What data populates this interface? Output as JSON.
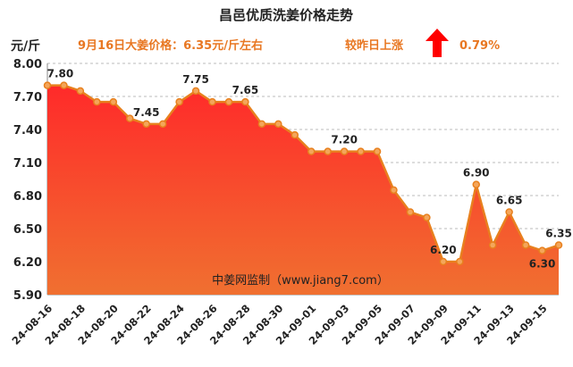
{
  "title": "昌邑优质洗姜价格走势",
  "unit_label": "元/斤",
  "info_price": "9月16日大姜价格：6.35元/斤左右",
  "info_change": "较昨日上涨",
  "info_change_value": "0.79%",
  "trend_icon": "arrow-up-icon",
  "watermark": "中姜网监制（www.jiang7.com）",
  "colors": {
    "title": "#222222",
    "accent_text": "#e87722",
    "arrow": "#ff0000",
    "line": "#e8801e",
    "marker_fill": "#f4a65a",
    "area_top": "#ff2a2a",
    "area_bottom": "#f07030",
    "grid": "#bbbbbb"
  },
  "chart_data": {
    "type": "area",
    "title": "昌邑优质洗姜价格走势",
    "ylabel": "元/斤",
    "xlabel": "",
    "ylim": [
      5.9,
      8.0
    ],
    "yticks": [
      "5.90",
      "6.20",
      "6.50",
      "6.80",
      "7.10",
      "7.40",
      "7.70",
      "8.00"
    ],
    "grid": true,
    "x": [
      "24-08-16",
      "24-08-17",
      "24-08-18",
      "24-08-19",
      "24-08-20",
      "24-08-21",
      "24-08-22",
      "24-08-23",
      "24-08-24",
      "24-08-25",
      "24-08-26",
      "24-08-27",
      "24-08-28",
      "24-08-29",
      "24-08-30",
      "24-08-31",
      "24-09-01",
      "24-09-02",
      "24-09-03",
      "24-09-04",
      "24-09-05",
      "24-09-06",
      "24-09-07",
      "24-09-08",
      "24-09-09",
      "24-09-10",
      "24-09-11",
      "24-09-12",
      "24-09-13",
      "24-09-14",
      "24-09-15",
      "24-09-16"
    ],
    "x_tick_labels": [
      "24-08-16",
      "24-08-18",
      "24-08-20",
      "24-08-22",
      "24-08-24",
      "24-08-26",
      "24-08-28",
      "24-08-30",
      "24-09-01",
      "24-09-03",
      "24-09-05",
      "24-09-07",
      "24-09-09",
      "24-09-11",
      "24-09-13",
      "24-09-15"
    ],
    "series": [
      {
        "values": [
          7.8,
          7.8,
          7.75,
          7.65,
          7.65,
          7.5,
          7.45,
          7.45,
          7.65,
          7.75,
          7.65,
          7.65,
          7.65,
          7.45,
          7.45,
          7.35,
          7.2,
          7.2,
          7.2,
          7.2,
          7.2,
          6.85,
          6.65,
          6.6,
          6.2,
          6.2,
          6.9,
          6.35,
          6.65,
          6.35,
          6.3,
          6.35
        ]
      }
    ],
    "data_labels": [
      {
        "index": 1,
        "text": "7.80"
      },
      {
        "index": 6,
        "text": "7.45"
      },
      {
        "index": 9,
        "text": "7.75"
      },
      {
        "index": 12,
        "text": "7.65"
      },
      {
        "index": 18,
        "text": "7.20"
      },
      {
        "index": 24,
        "text": "6.20"
      },
      {
        "index": 26,
        "text": "6.90"
      },
      {
        "index": 28,
        "text": "6.65"
      },
      {
        "index": 30,
        "text": "6.30",
        "position": "below"
      },
      {
        "index": 31,
        "text": "6.35"
      }
    ]
  }
}
